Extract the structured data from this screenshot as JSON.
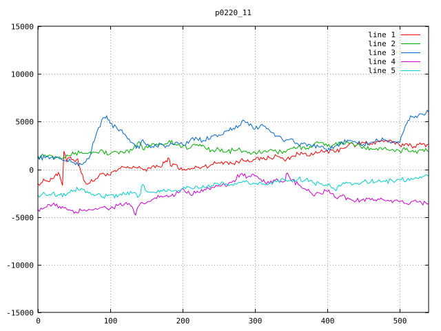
{
  "chart_data": {
    "type": "line",
    "title": "p0220_11",
    "xlabel": "",
    "ylabel": "",
    "xlim": [
      0,
      540
    ],
    "ylim": [
      -15000,
      15000
    ],
    "x_ticks": [
      0,
      100,
      200,
      300,
      400,
      500
    ],
    "y_ticks": [
      -15000,
      -10000,
      -5000,
      0,
      5000,
      10000,
      15000
    ],
    "grid": true,
    "legend_position": "top-right",
    "series": [
      {
        "name": "line 1",
        "color": "#ff0000",
        "points": [
          [
            0,
            -1500
          ],
          [
            10,
            -1200
          ],
          [
            20,
            -1000
          ],
          [
            25,
            -500
          ],
          [
            30,
            -600
          ],
          [
            34,
            -1700
          ],
          [
            36,
            1900
          ],
          [
            40,
            800
          ],
          [
            45,
            1300
          ],
          [
            50,
            900
          ],
          [
            55,
            1100
          ],
          [
            60,
            -400
          ],
          [
            65,
            -1300
          ],
          [
            70,
            -1500
          ],
          [
            80,
            -1000
          ],
          [
            90,
            -400
          ],
          [
            100,
            -600
          ],
          [
            110,
            -100
          ],
          [
            120,
            200
          ],
          [
            130,
            100
          ],
          [
            140,
            300
          ],
          [
            150,
            -200
          ],
          [
            160,
            400
          ],
          [
            170,
            200
          ],
          [
            175,
            700
          ],
          [
            180,
            1200
          ],
          [
            185,
            300
          ],
          [
            190,
            500
          ],
          [
            200,
            -100
          ],
          [
            210,
            0
          ],
          [
            220,
            200
          ],
          [
            230,
            300
          ],
          [
            240,
            500
          ],
          [
            250,
            700
          ],
          [
            260,
            800
          ],
          [
            270,
            600
          ],
          [
            280,
            900
          ],
          [
            290,
            1000
          ],
          [
            300,
            1000
          ],
          [
            310,
            1100
          ],
          [
            320,
            1200
          ],
          [
            330,
            1400
          ],
          [
            340,
            1000
          ],
          [
            350,
            1300
          ],
          [
            360,
            1600
          ],
          [
            370,
            1700
          ],
          [
            380,
            1500
          ],
          [
            390,
            1800
          ],
          [
            400,
            1900
          ],
          [
            410,
            1800
          ],
          [
            420,
            2200
          ],
          [
            430,
            2600
          ],
          [
            440,
            2500
          ],
          [
            450,
            2800
          ],
          [
            460,
            2700
          ],
          [
            470,
            2900
          ],
          [
            480,
            3000
          ],
          [
            490,
            2800
          ],
          [
            500,
            2500
          ],
          [
            510,
            2700
          ],
          [
            520,
            2400
          ],
          [
            530,
            2600
          ],
          [
            540,
            2600
          ]
        ]
      },
      {
        "name": "line 2",
        "color": "#00b000",
        "points": [
          [
            0,
            1400
          ],
          [
            10,
            1500
          ],
          [
            20,
            1400
          ],
          [
            30,
            1300
          ],
          [
            40,
            1500
          ],
          [
            50,
            1600
          ],
          [
            60,
            1800
          ],
          [
            70,
            1700
          ],
          [
            80,
            1800
          ],
          [
            90,
            1900
          ],
          [
            100,
            1600
          ],
          [
            110,
            1800
          ],
          [
            120,
            1700
          ],
          [
            130,
            2000
          ],
          [
            140,
            2900
          ],
          [
            145,
            2100
          ],
          [
            150,
            2400
          ],
          [
            160,
            2700
          ],
          [
            170,
            2600
          ],
          [
            180,
            2800
          ],
          [
            185,
            3000
          ],
          [
            190,
            2600
          ],
          [
            200,
            2400
          ],
          [
            210,
            2200
          ],
          [
            220,
            2600
          ],
          [
            230,
            2400
          ],
          [
            240,
            2000
          ],
          [
            250,
            2100
          ],
          [
            260,
            1800
          ],
          [
            270,
            2000
          ],
          [
            280,
            2000
          ],
          [
            290,
            1700
          ],
          [
            300,
            1800
          ],
          [
            310,
            1700
          ],
          [
            320,
            2000
          ],
          [
            330,
            1800
          ],
          [
            340,
            1900
          ],
          [
            350,
            2200
          ],
          [
            360,
            2400
          ],
          [
            370,
            2100
          ],
          [
            380,
            2500
          ],
          [
            390,
            2800
          ],
          [
            400,
            2400
          ],
          [
            410,
            2600
          ],
          [
            420,
            2900
          ],
          [
            430,
            2700
          ],
          [
            440,
            2500
          ],
          [
            450,
            2400
          ],
          [
            460,
            2200
          ],
          [
            470,
            2000
          ],
          [
            480,
            2300
          ],
          [
            490,
            2100
          ],
          [
            500,
            1900
          ],
          [
            510,
            2200
          ],
          [
            520,
            1800
          ],
          [
            530,
            2000
          ],
          [
            540,
            1900
          ]
        ]
      },
      {
        "name": "line 3",
        "color": "#0066cc",
        "points": [
          [
            0,
            1300
          ],
          [
            10,
            1200
          ],
          [
            20,
            1300
          ],
          [
            30,
            1100
          ],
          [
            40,
            900
          ],
          [
            50,
            700
          ],
          [
            60,
            500
          ],
          [
            70,
            1100
          ],
          [
            80,
            3500
          ],
          [
            90,
            5400
          ],
          [
            95,
            5600
          ],
          [
            100,
            4800
          ],
          [
            110,
            4200
          ],
          [
            120,
            3700
          ],
          [
            130,
            2800
          ],
          [
            140,
            2200
          ],
          [
            145,
            3100
          ],
          [
            150,
            2500
          ],
          [
            160,
            2300
          ],
          [
            170,
            2700
          ],
          [
            180,
            2400
          ],
          [
            190,
            2800
          ],
          [
            200,
            2600
          ],
          [
            210,
            3000
          ],
          [
            220,
            3200
          ],
          [
            230,
            3000
          ],
          [
            240,
            3500
          ],
          [
            250,
            3600
          ],
          [
            260,
            4000
          ],
          [
            270,
            4300
          ],
          [
            280,
            4600
          ],
          [
            285,
            5100
          ],
          [
            290,
            4900
          ],
          [
            300,
            4200
          ],
          [
            310,
            4700
          ],
          [
            320,
            4100
          ],
          [
            330,
            3500
          ],
          [
            340,
            2900
          ],
          [
            350,
            3200
          ],
          [
            360,
            2600
          ],
          [
            370,
            2700
          ],
          [
            380,
            2400
          ],
          [
            390,
            2300
          ],
          [
            400,
            1900
          ],
          [
            410,
            2400
          ],
          [
            420,
            2800
          ],
          [
            430,
            3000
          ],
          [
            440,
            2800
          ],
          [
            450,
            2600
          ],
          [
            460,
            2800
          ],
          [
            470,
            3000
          ],
          [
            480,
            3100
          ],
          [
            490,
            2900
          ],
          [
            500,
            2800
          ],
          [
            510,
            4800
          ],
          [
            515,
            5600
          ],
          [
            520,
            5400
          ],
          [
            530,
            5800
          ],
          [
            540,
            6000
          ]
        ]
      },
      {
        "name": "line 4",
        "color": "#cc00cc",
        "points": [
          [
            0,
            -4200
          ],
          [
            10,
            -4000
          ],
          [
            20,
            -3700
          ],
          [
            30,
            -3900
          ],
          [
            40,
            -4200
          ],
          [
            50,
            -4600
          ],
          [
            60,
            -4300
          ],
          [
            70,
            -4200
          ],
          [
            80,
            -4100
          ],
          [
            90,
            -4000
          ],
          [
            100,
            -4100
          ],
          [
            110,
            -3800
          ],
          [
            120,
            -3600
          ],
          [
            130,
            -3900
          ],
          [
            135,
            -4800
          ],
          [
            140,
            -3800
          ],
          [
            150,
            -3500
          ],
          [
            160,
            -3100
          ],
          [
            170,
            -2800
          ],
          [
            180,
            -2900
          ],
          [
            190,
            -2700
          ],
          [
            200,
            -2000
          ],
          [
            210,
            -2600
          ],
          [
            220,
            -2300
          ],
          [
            230,
            -2100
          ],
          [
            240,
            -1900
          ],
          [
            250,
            -1700
          ],
          [
            260,
            -1800
          ],
          [
            270,
            -1200
          ],
          [
            280,
            -500
          ],
          [
            290,
            -800
          ],
          [
            300,
            -700
          ],
          [
            310,
            -1300
          ],
          [
            320,
            -1500
          ],
          [
            330,
            -1000
          ],
          [
            340,
            -1300
          ],
          [
            345,
            -400
          ],
          [
            350,
            -1200
          ],
          [
            360,
            -1600
          ],
          [
            370,
            -2100
          ],
          [
            380,
            -2700
          ],
          [
            390,
            -2500
          ],
          [
            400,
            -2300
          ],
          [
            410,
            -2900
          ],
          [
            420,
            -2800
          ],
          [
            430,
            -3100
          ],
          [
            440,
            -3300
          ],
          [
            450,
            -3100
          ],
          [
            460,
            -3200
          ],
          [
            470,
            -3100
          ],
          [
            480,
            -3300
          ],
          [
            490,
            -3500
          ],
          [
            500,
            -3400
          ],
          [
            510,
            -3600
          ],
          [
            520,
            -3300
          ],
          [
            530,
            -3500
          ],
          [
            540,
            -3600
          ]
        ]
      },
      {
        "name": "line 5",
        "color": "#00cccc",
        "points": [
          [
            0,
            -2700
          ],
          [
            10,
            -2600
          ],
          [
            20,
            -2500
          ],
          [
            30,
            -2700
          ],
          [
            40,
            -2600
          ],
          [
            50,
            -2200
          ],
          [
            60,
            -2000
          ],
          [
            70,
            -2500
          ],
          [
            80,
            -2700
          ],
          [
            90,
            -2900
          ],
          [
            100,
            -2700
          ],
          [
            110,
            -2900
          ],
          [
            120,
            -2600
          ],
          [
            130,
            -2500
          ],
          [
            140,
            -2800
          ],
          [
            145,
            -1600
          ],
          [
            150,
            -2300
          ],
          [
            160,
            -2400
          ],
          [
            170,
            -2200
          ],
          [
            180,
            -2100
          ],
          [
            190,
            -2200
          ],
          [
            200,
            -2000
          ],
          [
            210,
            -1900
          ],
          [
            220,
            -1800
          ],
          [
            230,
            -1900
          ],
          [
            240,
            -1700
          ],
          [
            250,
            -1600
          ],
          [
            260,
            -1500
          ],
          [
            270,
            -1700
          ],
          [
            280,
            -1400
          ],
          [
            290,
            -1300
          ],
          [
            300,
            -1500
          ],
          [
            310,
            -1600
          ],
          [
            320,
            -1400
          ],
          [
            330,
            -1300
          ],
          [
            340,
            -1100
          ],
          [
            350,
            -1200
          ],
          [
            360,
            -1000
          ],
          [
            370,
            -1100
          ],
          [
            380,
            -1400
          ],
          [
            390,
            -1500
          ],
          [
            400,
            -1700
          ],
          [
            410,
            -2100
          ],
          [
            420,
            -1600
          ],
          [
            430,
            -1400
          ],
          [
            440,
            -1500
          ],
          [
            450,
            -1300
          ],
          [
            460,
            -1300
          ],
          [
            470,
            -1200
          ],
          [
            480,
            -1300
          ],
          [
            490,
            -1200
          ],
          [
            500,
            -1100
          ],
          [
            510,
            -1100
          ],
          [
            520,
            -1000
          ],
          [
            530,
            -900
          ],
          [
            540,
            -700
          ]
        ]
      }
    ]
  }
}
